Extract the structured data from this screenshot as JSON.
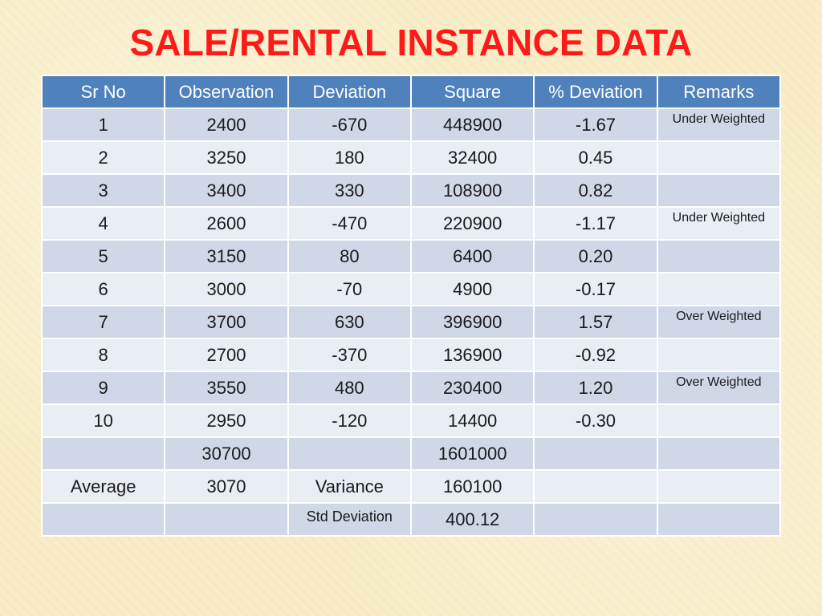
{
  "slide": {
    "title": "SALE/RENTAL INSTANCE DATA"
  },
  "table": {
    "headers": [
      "Sr No",
      "Observation",
      "Deviation",
      "Square",
      "% Deviation",
      "Remarks"
    ],
    "rows": [
      {
        "sr": "1",
        "observation": "2400",
        "deviation": "-670",
        "square": "448900",
        "pct_deviation": "-1.67",
        "remarks": "Under Weighted"
      },
      {
        "sr": "2",
        "observation": "3250",
        "deviation": "180",
        "square": "32400",
        "pct_deviation": "0.45",
        "remarks": ""
      },
      {
        "sr": "3",
        "observation": "3400",
        "deviation": "330",
        "square": "108900",
        "pct_deviation": "0.82",
        "remarks": ""
      },
      {
        "sr": "4",
        "observation": "2600",
        "deviation": "-470",
        "square": "220900",
        "pct_deviation": "-1.17",
        "remarks": "Under Weighted"
      },
      {
        "sr": "5",
        "observation": "3150",
        "deviation": "80",
        "square": "6400",
        "pct_deviation": "0.20",
        "remarks": ""
      },
      {
        "sr": "6",
        "observation": "3000",
        "deviation": "-70",
        "square": "4900",
        "pct_deviation": "-0.17",
        "remarks": ""
      },
      {
        "sr": "7",
        "observation": "3700",
        "deviation": "630",
        "square": "396900",
        "pct_deviation": "1.57",
        "remarks": "Over Weighted"
      },
      {
        "sr": "8",
        "observation": "2700",
        "deviation": "-370",
        "square": "136900",
        "pct_deviation": "-0.92",
        "remarks": ""
      },
      {
        "sr": "9",
        "observation": "3550",
        "deviation": "480",
        "square": "230400",
        "pct_deviation": "1.20",
        "remarks": "Over Weighted"
      },
      {
        "sr": "10",
        "observation": "2950",
        "deviation": "-120",
        "square": "14400",
        "pct_deviation": "-0.30",
        "remarks": ""
      }
    ],
    "totals": {
      "observation_sum": "30700",
      "square_sum": "1601000"
    },
    "average": {
      "label": "Average",
      "value": "3070",
      "variance_label": "Variance",
      "variance_value": "160100"
    },
    "std_dev": {
      "label": "Std Deviation",
      "value": "400.12"
    }
  },
  "colors": {
    "title": "#ff1a1a",
    "header_bg": "#4f81bd",
    "row_dark": "#d0d8e8",
    "row_light": "#e9edf4",
    "background": "#f9edc6"
  }
}
